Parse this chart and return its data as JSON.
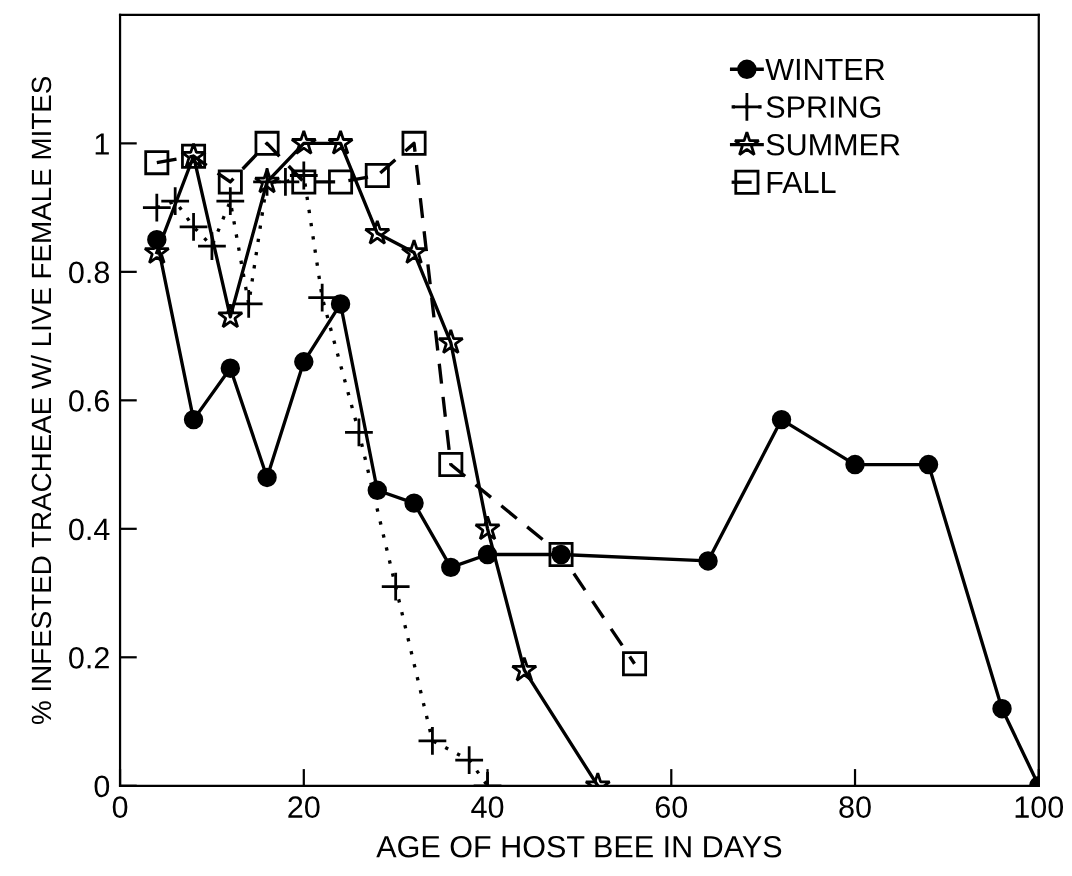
{
  "chart_data": {
    "type": "line",
    "xlabel": "AGE OF HOST BEE IN DAYS",
    "ylabel": "% INFESTED TRACHEAE W/ LIVE FEMALE MITES",
    "xlim": [
      0,
      100
    ],
    "ylim": [
      0,
      1.2
    ],
    "xticks": [
      0,
      20,
      40,
      60,
      80,
      100
    ],
    "yticks": [
      0,
      0.2,
      0.4,
      0.6,
      0.8,
      1
    ],
    "grid": false,
    "legend": "top right",
    "series": [
      {
        "name": "WINTER",
        "color": "#000000",
        "marker": "circle",
        "line_style": "solid",
        "x": [
          4,
          8,
          12,
          16,
          20,
          24,
          28,
          32,
          36,
          40,
          48,
          64,
          72,
          80,
          88,
          96,
          100
        ],
        "values": [
          0.85,
          0.57,
          0.65,
          0.48,
          0.66,
          0.75,
          0.46,
          0.44,
          0.34,
          0.36,
          0.36,
          0.35,
          0.57,
          0.5,
          0.5,
          0.12,
          0
        ]
      },
      {
        "name": "SPRING",
        "color": "#000000",
        "marker": "cross",
        "line_style": "dotted",
        "x": [
          4,
          6,
          8,
          10,
          12,
          14,
          16,
          18,
          20,
          22,
          26,
          30,
          34,
          38,
          40
        ],
        "values": [
          0.9,
          0.91,
          0.87,
          0.84,
          0.91,
          0.75,
          0.94,
          0.94,
          0.95,
          0.76,
          0.55,
          0.31,
          0.07,
          0.04,
          0
        ]
      },
      {
        "name": "SUMMER",
        "color": "#000000",
        "marker": "star",
        "line_style": "solid",
        "x": [
          4,
          8,
          12,
          16,
          20,
          24,
          28,
          32,
          36,
          40,
          44,
          52
        ],
        "values": [
          0.83,
          0.98,
          0.73,
          0.94,
          1,
          1,
          0.86,
          0.83,
          0.69,
          0.4,
          0.18,
          0
        ]
      },
      {
        "name": "FALL",
        "color": "#000000",
        "marker": "square",
        "line_style": "dashed",
        "x": [
          4,
          8,
          12,
          16,
          20,
          24,
          28,
          32,
          36,
          48,
          56
        ],
        "values": [
          0.97,
          0.98,
          0.94,
          1,
          0.94,
          0.94,
          0.95,
          1,
          0.5,
          0.36,
          0.19
        ]
      }
    ]
  }
}
